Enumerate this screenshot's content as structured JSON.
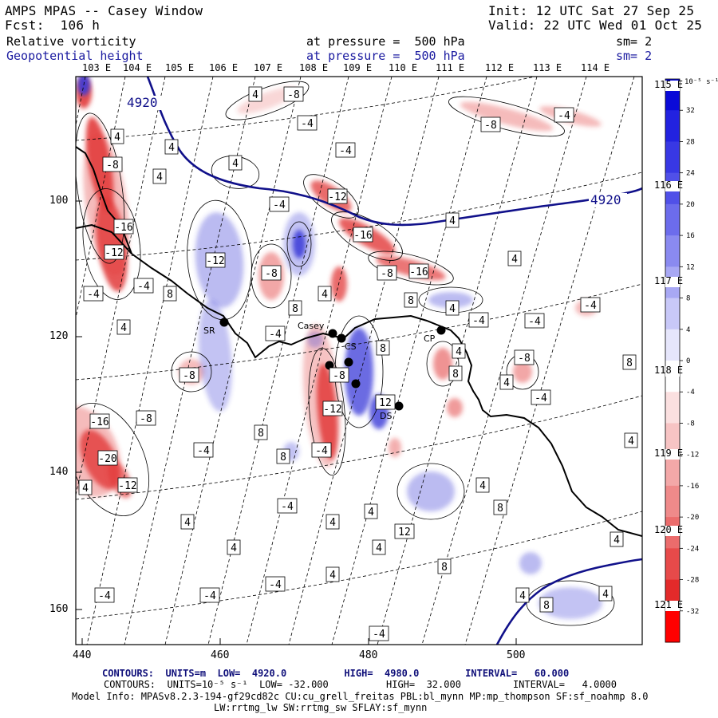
{
  "header": {
    "line1_left": "AMPS MPAS -- Casey Window",
    "line1_right": "Init: 12 UTC Sat 27 Sep 25",
    "line2_left": "Fcst:  106 h",
    "line2_right": "Valid: 22 UTC Wed 01 Oct 25",
    "field1_name": "Relative vorticity",
    "field1_level": "at pressure =  500 hPa",
    "field1_sm": "sm= 2",
    "field2_name": "Geopotential height",
    "field2_level": "at pressure =  500 hPa",
    "field2_sm": "sm= 2"
  },
  "map": {
    "top_lon_labels": [
      "103 E",
      "104 E",
      "105 E",
      "106 E",
      "107 E",
      "108 E",
      "109 E",
      "110 E",
      "111 E",
      "112 E",
      "113 E",
      "114 E"
    ],
    "right_lon_labels": [
      "115 E",
      "116 E",
      "117 E",
      "118 E",
      "119 E",
      "120 E",
      "121 E"
    ],
    "x_ticks": [
      "440",
      "460",
      "480",
      "500"
    ],
    "y_ticks": [
      "100",
      "120",
      "140",
      "160"
    ],
    "height_labels": [
      "4920",
      "4920"
    ],
    "stations": [
      "SR",
      "Casey",
      "CS",
      "CP",
      "DS"
    ],
    "contour_labels_pos": [
      "4",
      "8",
      "12"
    ],
    "contour_labels_neg": [
      "-4",
      "-8",
      "-12",
      "-16",
      "-20"
    ],
    "colors": {
      "positive": "#3b3bd8",
      "negative": "#e23a3a",
      "height_line": "#10108a"
    }
  },
  "colorbar": {
    "unit": "10⁻⁵ s⁻¹",
    "ticks": [
      "32",
      "28",
      "24",
      "20",
      "16",
      "12",
      "8",
      "4",
      "0",
      "-4",
      "-8",
      "-12",
      "-16",
      "-20",
      "-24",
      "-28",
      "-32"
    ]
  },
  "footer": {
    "line1": "CONTOURS:  UNITS=m  LOW=  4920.0          HIGH=  4980.0        INTERVAL=   60.000",
    "line2": "CONTOURS:  UNITS=10⁻⁵ s⁻¹  LOW= -32.000          HIGH=  32.000         INTERVAL=   4.0000",
    "line3": "Model Info: MPASv8.2.3-194-gf29cd82c CU:cu_grell_freitas PBL:bl_mynn MP:mp_thompson SF:sf_noahmp 8.0",
    "line4": "LW:rrtmg_lw SW:rrtmg_sw SFLAY:sf_mynn"
  }
}
